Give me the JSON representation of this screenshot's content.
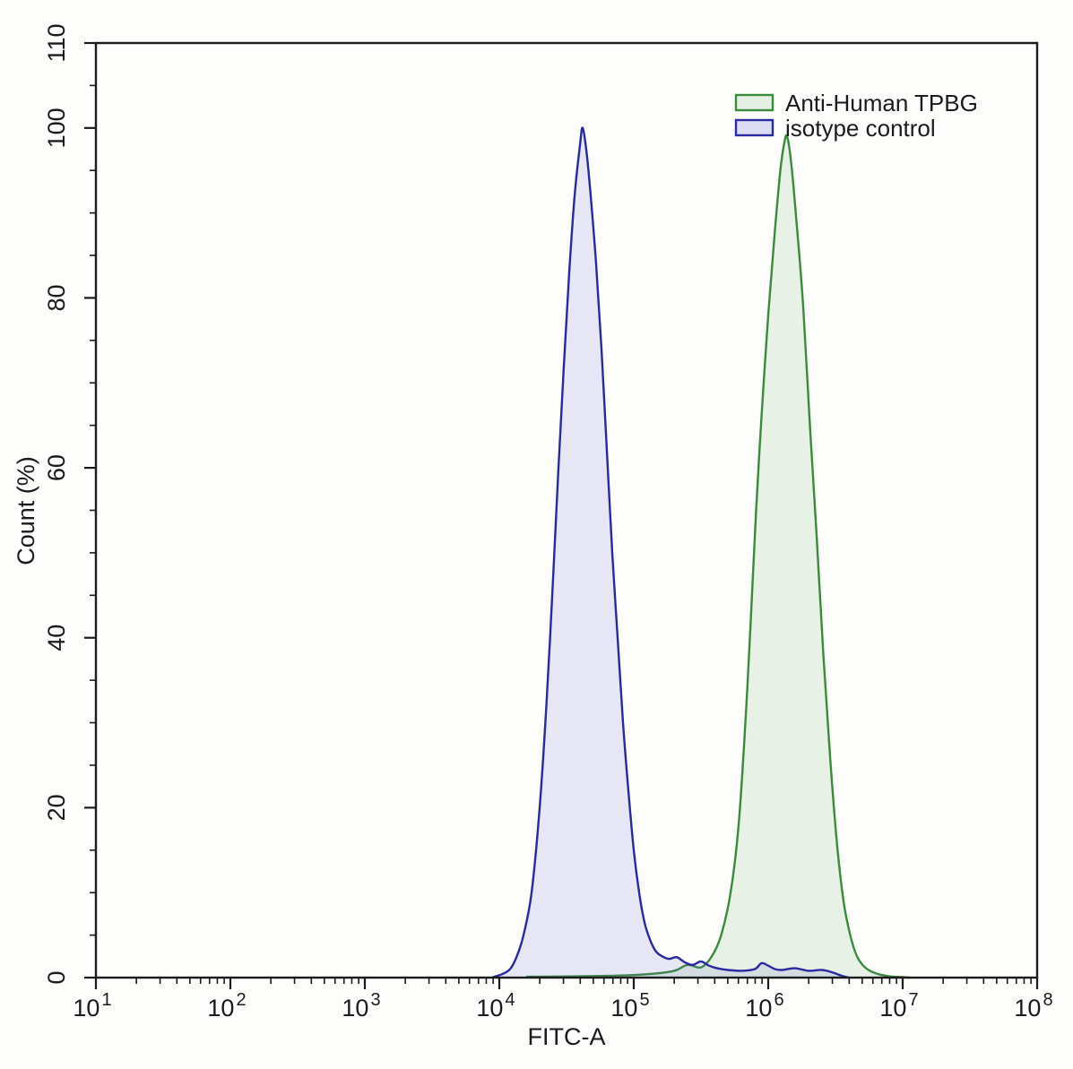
{
  "figure": {
    "background": "#fdfdfb",
    "frame_color": "#1b1b1b",
    "legend": {
      "position": "top-right-inside",
      "items": [
        {
          "label": "Anti-Human TPBG",
          "swatch_fill": "#e3f0e3",
          "swatch_stroke": "#3c8a3c"
        },
        {
          "label": "isotype control",
          "swatch_fill": "#dcdcf4",
          "swatch_stroke": "#2929a0"
        }
      ]
    }
  },
  "chart_data": {
    "type": "area",
    "subtype": "flow-cytometry-histogram",
    "title": "",
    "xlabel": "FITC-A",
    "ylabel": "Count  (%)",
    "x_scale": "log10",
    "x_range_log10": [
      1,
      8
    ],
    "x_tick_base": "10",
    "x_tick_exponents": [
      "1",
      "2",
      "3",
      "4",
      "5",
      "6",
      "7",
      "8"
    ],
    "x_minor_ticks_per_decade": [
      2,
      3,
      4,
      5,
      6,
      7,
      8,
      9
    ],
    "ylim": [
      0,
      110
    ],
    "y_major_ticks": [
      0,
      20,
      40,
      60,
      80,
      100,
      110
    ],
    "y_minor_step": 5,
    "grid": false,
    "legend_position": "top-right-inside",
    "series": [
      {
        "name": "Anti-Human TPBG",
        "peak_x": 1350000,
        "peak_pct": 99,
        "stroke": "#3c8a3c",
        "fill": "rgba(100, 170, 100, 0.14)",
        "points_log10x_pct": [
          [
            4.2,
            0.1
          ],
          [
            4.8,
            0.2
          ],
          [
            5.1,
            0.4
          ],
          [
            5.3,
            0.8
          ],
          [
            5.4,
            1.5
          ],
          [
            5.5,
            1.2
          ],
          [
            5.58,
            2.5
          ],
          [
            5.65,
            5
          ],
          [
            5.72,
            10
          ],
          [
            5.78,
            18
          ],
          [
            5.83,
            30
          ],
          [
            5.87,
            42
          ],
          [
            5.91,
            55
          ],
          [
            5.95,
            66
          ],
          [
            6.0,
            78
          ],
          [
            6.05,
            88
          ],
          [
            6.09,
            95
          ],
          [
            6.12,
            98.3
          ],
          [
            6.14,
            99
          ],
          [
            6.17,
            96
          ],
          [
            6.21,
            89
          ],
          [
            6.26,
            79
          ],
          [
            6.31,
            65
          ],
          [
            6.36,
            52
          ],
          [
            6.41,
            38
          ],
          [
            6.46,
            26
          ],
          [
            6.51,
            16
          ],
          [
            6.56,
            9
          ],
          [
            6.61,
            5
          ],
          [
            6.66,
            2.5
          ],
          [
            6.72,
            1.2
          ],
          [
            6.8,
            0.5
          ],
          [
            6.9,
            0.15
          ],
          [
            7.0,
            0.05
          ],
          [
            7.05,
            0
          ]
        ]
      },
      {
        "name": "isotype control",
        "peak_x": 42000,
        "peak_pct": 100,
        "stroke": "#2929a0",
        "fill": "rgba(90, 90, 205, 0.14)",
        "points_log10x_pct": [
          [
            3.95,
            0.05
          ],
          [
            4.02,
            0.4
          ],
          [
            4.08,
            1
          ],
          [
            4.13,
            2.5
          ],
          [
            4.18,
            5
          ],
          [
            4.24,
            10
          ],
          [
            4.3,
            20
          ],
          [
            4.35,
            32
          ],
          [
            4.4,
            47
          ],
          [
            4.44,
            60
          ],
          [
            4.48,
            72
          ],
          [
            4.52,
            83
          ],
          [
            4.56,
            92
          ],
          [
            4.6,
            98
          ],
          [
            4.62,
            100
          ],
          [
            4.65,
            97
          ],
          [
            4.68,
            92
          ],
          [
            4.72,
            84
          ],
          [
            4.76,
            74
          ],
          [
            4.8,
            62
          ],
          [
            4.84,
            50
          ],
          [
            4.88,
            40
          ],
          [
            4.92,
            30
          ],
          [
            4.96,
            22
          ],
          [
            5.0,
            15
          ],
          [
            5.04,
            10
          ],
          [
            5.08,
            6.5
          ],
          [
            5.12,
            4.5
          ],
          [
            5.16,
            3.2
          ],
          [
            5.2,
            2.6
          ],
          [
            5.26,
            2.2
          ],
          [
            5.32,
            2.4
          ],
          [
            5.38,
            1.8
          ],
          [
            5.44,
            1.5
          ],
          [
            5.5,
            1.9
          ],
          [
            5.56,
            1.4
          ],
          [
            5.62,
            1.1
          ],
          [
            5.7,
            0.9
          ],
          [
            5.8,
            0.8
          ],
          [
            5.9,
            1.0
          ],
          [
            5.95,
            1.7
          ],
          [
            6.0,
            1.4
          ],
          [
            6.05,
            1.0
          ],
          [
            6.1,
            0.9
          ],
          [
            6.2,
            1.1
          ],
          [
            6.3,
            0.8
          ],
          [
            6.4,
            0.9
          ],
          [
            6.48,
            0.6
          ],
          [
            6.55,
            0.2
          ],
          [
            6.6,
            0
          ]
        ]
      }
    ]
  }
}
